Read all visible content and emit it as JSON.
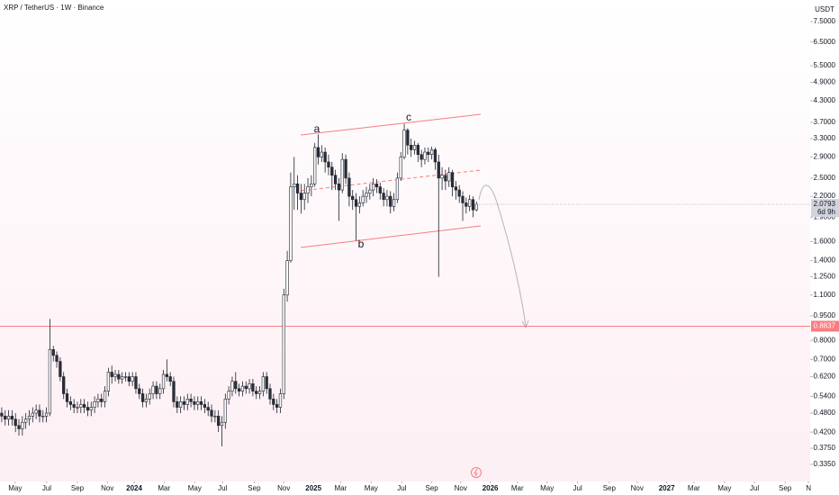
{
  "chart_data": {
    "type": "candlestick",
    "title": "XRP / TetherUS · 1W · Binance",
    "currency": "USDT",
    "log_scale": true,
    "up_color": "#ffffff",
    "down_color": "#2a2e39",
    "outline_color": "#1e222d",
    "x": [
      0,
      1,
      2,
      3,
      4,
      5,
      6,
      7,
      8,
      9,
      10,
      11,
      12,
      13,
      14,
      15,
      16,
      17,
      18,
      19,
      20,
      21,
      22,
      23,
      24,
      25,
      26,
      27,
      28,
      29,
      30,
      31,
      32,
      33,
      34,
      35,
      36,
      37,
      38,
      39,
      40,
      41,
      42,
      43,
      44,
      45,
      46,
      47,
      48,
      49,
      50,
      51,
      52,
      53,
      54,
      55,
      56,
      57,
      58,
      59,
      60,
      61,
      62,
      63,
      64,
      65,
      66,
      67,
      68,
      69,
      70,
      71,
      72,
      73,
      74,
      75,
      76,
      77,
      78,
      79,
      80,
      81,
      82,
      83,
      84,
      85,
      86,
      87,
      88,
      89,
      90,
      91,
      92,
      93,
      94,
      95,
      96,
      97,
      98,
      99,
      100,
      101,
      102,
      103,
      104,
      105,
      106,
      107,
      108,
      109,
      110,
      111,
      112,
      113,
      114,
      115,
      116,
      117,
      118,
      119,
      120,
      121,
      122,
      123,
      124,
      125,
      126,
      127,
      128,
      129,
      130,
      131,
      132,
      133,
      134,
      135,
      136,
      137,
      138
    ],
    "open": [
      0.48,
      0.47,
      0.46,
      0.47,
      0.46,
      0.44,
      0.43,
      0.45,
      0.46,
      0.47,
      0.48,
      0.49,
      0.47,
      0.47,
      0.48,
      0.75,
      0.72,
      0.69,
      0.62,
      0.55,
      0.52,
      0.51,
      0.5,
      0.5,
      0.51,
      0.5,
      0.49,
      0.5,
      0.52,
      0.53,
      0.52,
      0.56,
      0.64,
      0.62,
      0.63,
      0.61,
      0.62,
      0.62,
      0.6,
      0.62,
      0.57,
      0.55,
      0.52,
      0.53,
      0.55,
      0.58,
      0.55,
      0.57,
      0.63,
      0.62,
      0.6,
      0.52,
      0.5,
      0.52,
      0.51,
      0.53,
      0.52,
      0.51,
      0.52,
      0.51,
      0.5,
      0.49,
      0.47,
      0.47,
      0.44,
      0.45,
      0.53,
      0.56,
      0.6,
      0.57,
      0.56,
      0.58,
      0.57,
      0.59,
      0.56,
      0.55,
      0.56,
      0.62,
      0.57,
      0.53,
      0.51,
      0.5,
      0.55,
      1.1,
      1.4,
      2.35,
      2.4,
      2.25,
      2.15,
      2.25,
      2.35,
      2.4,
      3.1,
      2.9,
      3.0,
      2.8,
      2.7,
      2.55,
      2.4,
      2.3,
      2.85,
      2.5,
      2.2,
      2.15,
      2.05,
      2.1,
      2.2,
      2.25,
      2.3,
      2.4,
      2.35,
      2.25,
      2.15,
      2.2,
      2.05,
      2.15,
      2.5,
      2.9,
      3.5,
      3.15,
      3.05,
      3.15,
      2.95,
      2.85,
      3.0,
      2.95,
      3.05,
      2.8,
      2.5,
      2.55,
      2.45,
      2.6,
      2.35,
      2.3,
      2.2,
      2.1,
      2.05,
      2.15,
      2.0
    ],
    "high": [
      0.5,
      0.49,
      0.49,
      0.49,
      0.48,
      0.46,
      0.47,
      0.48,
      0.49,
      0.5,
      0.51,
      0.51,
      0.49,
      0.5,
      0.93,
      0.77,
      0.74,
      0.71,
      0.64,
      0.57,
      0.54,
      0.53,
      0.52,
      0.53,
      0.53,
      0.52,
      0.52,
      0.54,
      0.55,
      0.55,
      0.58,
      0.66,
      0.67,
      0.65,
      0.65,
      0.64,
      0.64,
      0.64,
      0.64,
      0.64,
      0.59,
      0.57,
      0.55,
      0.57,
      0.6,
      0.6,
      0.59,
      0.65,
      0.7,
      0.64,
      0.62,
      0.54,
      0.54,
      0.54,
      0.55,
      0.55,
      0.54,
      0.54,
      0.54,
      0.53,
      0.52,
      0.51,
      0.49,
      0.49,
      0.47,
      0.55,
      0.58,
      0.62,
      0.64,
      0.59,
      0.6,
      0.6,
      0.61,
      0.61,
      0.58,
      0.58,
      0.64,
      0.64,
      0.59,
      0.55,
      0.53,
      0.57,
      1.15,
      1.5,
      2.6,
      2.9,
      2.55,
      2.4,
      2.4,
      2.5,
      2.55,
      3.2,
      3.4,
      3.15,
      3.1,
      2.95,
      2.8,
      2.65,
      2.5,
      2.98,
      2.95,
      2.6,
      2.3,
      2.25,
      2.2,
      2.3,
      2.35,
      2.4,
      2.5,
      2.48,
      2.42,
      2.33,
      2.3,
      2.28,
      2.25,
      2.6,
      3.0,
      3.66,
      3.55,
      3.3,
      3.25,
      3.2,
      3.05,
      3.1,
      3.1,
      3.12,
      3.1,
      2.95,
      2.7,
      2.65,
      2.7,
      2.65,
      2.45,
      2.38,
      2.28,
      2.18,
      2.22,
      2.2,
      2.12
    ],
    "low": [
      0.45,
      0.44,
      0.44,
      0.44,
      0.42,
      0.41,
      0.41,
      0.43,
      0.44,
      0.45,
      0.46,
      0.45,
      0.45,
      0.45,
      0.47,
      0.69,
      0.66,
      0.6,
      0.53,
      0.5,
      0.49,
      0.48,
      0.48,
      0.48,
      0.48,
      0.47,
      0.47,
      0.48,
      0.5,
      0.5,
      0.5,
      0.54,
      0.59,
      0.6,
      0.59,
      0.59,
      0.6,
      0.58,
      0.58,
      0.55,
      0.53,
      0.5,
      0.5,
      0.51,
      0.53,
      0.53,
      0.53,
      0.55,
      0.6,
      0.58,
      0.5,
      0.48,
      0.48,
      0.49,
      0.49,
      0.5,
      0.49,
      0.49,
      0.49,
      0.48,
      0.47,
      0.45,
      0.45,
      0.42,
      0.38,
      0.43,
      0.51,
      0.54,
      0.55,
      0.54,
      0.54,
      0.55,
      0.55,
      0.54,
      0.53,
      0.53,
      0.54,
      0.55,
      0.51,
      0.49,
      0.48,
      0.48,
      0.53,
      1.05,
      1.38,
      2.0,
      2.0,
      1.95,
      2.0,
      2.1,
      2.2,
      2.35,
      2.75,
      2.8,
      2.6,
      2.55,
      2.3,
      2.3,
      1.85,
      2.25,
      2.4,
      2.05,
      2.0,
      1.61,
      1.95,
      2.05,
      2.1,
      2.15,
      2.2,
      2.25,
      2.15,
      2.05,
      2.05,
      1.95,
      1.98,
      2.1,
      2.45,
      2.85,
      2.95,
      2.9,
      2.95,
      2.8,
      2.7,
      2.75,
      2.8,
      2.85,
      2.65,
      1.25,
      2.3,
      2.3,
      2.35,
      2.2,
      2.15,
      2.1,
      1.85,
      1.95,
      1.98,
      1.9,
      1.98
    ],
    "close": [
      0.47,
      0.46,
      0.47,
      0.46,
      0.44,
      0.43,
      0.45,
      0.46,
      0.47,
      0.48,
      0.49,
      0.47,
      0.47,
      0.48,
      0.75,
      0.72,
      0.69,
      0.62,
      0.55,
      0.52,
      0.51,
      0.5,
      0.5,
      0.51,
      0.5,
      0.49,
      0.5,
      0.52,
      0.53,
      0.52,
      0.56,
      0.64,
      0.62,
      0.63,
      0.61,
      0.62,
      0.62,
      0.6,
      0.62,
      0.57,
      0.55,
      0.52,
      0.53,
      0.55,
      0.58,
      0.55,
      0.57,
      0.63,
      0.62,
      0.6,
      0.52,
      0.5,
      0.52,
      0.51,
      0.53,
      0.52,
      0.51,
      0.52,
      0.51,
      0.5,
      0.49,
      0.47,
      0.47,
      0.44,
      0.45,
      0.53,
      0.56,
      0.6,
      0.57,
      0.56,
      0.58,
      0.57,
      0.59,
      0.56,
      0.55,
      0.56,
      0.62,
      0.57,
      0.53,
      0.51,
      0.5,
      0.55,
      1.1,
      1.4,
      2.35,
      2.4,
      2.25,
      2.15,
      2.25,
      2.35,
      2.4,
      3.1,
      2.9,
      3.0,
      2.8,
      2.7,
      2.55,
      2.4,
      2.3,
      2.85,
      2.5,
      2.2,
      2.15,
      2.05,
      2.1,
      2.2,
      2.25,
      2.3,
      2.4,
      2.35,
      2.25,
      2.15,
      2.2,
      2.05,
      2.15,
      2.5,
      2.9,
      3.5,
      3.15,
      3.05,
      3.15,
      2.95,
      2.85,
      3.0,
      2.95,
      3.05,
      2.8,
      2.5,
      2.55,
      2.45,
      2.6,
      2.35,
      2.3,
      2.2,
      2.1,
      2.05,
      2.15,
      2.0,
      2.0793
    ],
    "countdown": "6d 9h",
    "level": 0.8837,
    "level_color": "#f77c80",
    "annotations": [
      "a",
      "b",
      "c"
    ],
    "xlim": [
      -0.5,
      235
    ],
    "xticks": [
      {
        "value": 3.9,
        "label": "May"
      },
      {
        "value": 13.1,
        "label": "Jul"
      },
      {
        "value": 22.0,
        "label": "Sep"
      },
      {
        "value": 30.7,
        "label": "Nov"
      },
      {
        "value": 38.5,
        "label": "2024"
      },
      {
        "value": 47.2,
        "label": "Mar"
      },
      {
        "value": 56.1,
        "label": "May"
      },
      {
        "value": 64.2,
        "label": "Jul"
      },
      {
        "value": 73.4,
        "label": "Sep"
      },
      {
        "value": 82.0,
        "label": "Nov"
      },
      {
        "value": 90.6,
        "label": "2025"
      },
      {
        "value": 98.5,
        "label": "Mar"
      },
      {
        "value": 107.4,
        "label": "May"
      },
      {
        "value": 116.3,
        "label": "Jul"
      },
      {
        "value": 125.0,
        "label": "Sep"
      },
      {
        "value": 133.4,
        "label": "Nov"
      },
      {
        "value": 142.0,
        "label": "2026"
      },
      {
        "value": 149.9,
        "label": "Mar"
      },
      {
        "value": 158.5,
        "label": "May"
      },
      {
        "value": 167.4,
        "label": "Jul"
      },
      {
        "value": 176.6,
        "label": "Sep"
      },
      {
        "value": 184.7,
        "label": "Nov"
      },
      {
        "value": 193.3,
        "label": "2027"
      },
      {
        "value": 201.2,
        "label": "Mar"
      },
      {
        "value": 210.1,
        "label": "May"
      },
      {
        "value": 218.8,
        "label": "Jul"
      },
      {
        "value": 227.7,
        "label": "Sep"
      },
      {
        "value": 234.5,
        "label": "N"
      }
    ],
    "ylim": [
      0.297,
      8.73
    ],
    "yticks": [
      {
        "value": 7.5,
        "label": "7.5000"
      },
      {
        "value": 6.5,
        "label": "6.5000"
      },
      {
        "value": 5.5,
        "label": "5.5000"
      },
      {
        "value": 4.9,
        "label": "4.9000"
      },
      {
        "value": 4.3,
        "label": "4.3000"
      },
      {
        "value": 3.7,
        "label": "3.7000"
      },
      {
        "value": 3.3,
        "label": "3.3000"
      },
      {
        "value": 2.9,
        "label": "2.9000"
      },
      {
        "value": 2.5,
        "label": "2.5000"
      },
      {
        "value": 2.2,
        "label": "2.2000"
      },
      {
        "value": 1.9,
        "label": "1.9000"
      },
      {
        "value": 1.6,
        "label": "1.6000"
      },
      {
        "value": 1.4,
        "label": "1.4000"
      },
      {
        "value": 1.25,
        "label": "1.2500"
      },
      {
        "value": 1.1,
        "label": "1.1000"
      },
      {
        "value": 0.95,
        "label": "0.9500"
      },
      {
        "value": 0.8,
        "label": "0.8000"
      },
      {
        "value": 0.7,
        "label": "0.7000"
      },
      {
        "value": 0.62,
        "label": "0.6200"
      },
      {
        "value": 0.54,
        "label": "0.5400"
      },
      {
        "value": 0.48,
        "label": "0.4800"
      },
      {
        "value": 0.42,
        "label": "0.4200"
      },
      {
        "value": 0.375,
        "label": "0.3750"
      },
      {
        "value": 0.335,
        "label": "0.3350"
      }
    ]
  }
}
